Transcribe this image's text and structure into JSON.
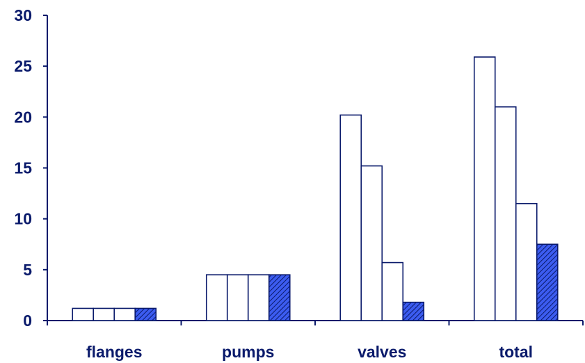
{
  "chart_data": {
    "type": "bar",
    "categories": [
      "flanges",
      "pumps",
      "valves",
      "total"
    ],
    "series": [
      {
        "values": [
          1.2,
          4.5,
          20.2,
          25.9
        ],
        "fill": "#ffffff"
      },
      {
        "values": [
          1.2,
          4.5,
          15.2,
          21.0
        ],
        "fill": "#ffffff"
      },
      {
        "values": [
          1.2,
          4.5,
          5.7,
          11.5
        ],
        "fill": "#ffffff"
      },
      {
        "values": [
          1.2,
          4.5,
          1.8,
          7.5
        ],
        "fill": "hatched-blue"
      }
    ],
    "ylim": [
      0,
      30
    ],
    "yticks": [
      "0",
      "5",
      "10",
      "15",
      "20",
      "25",
      "30"
    ],
    "grid": false,
    "legend": "none",
    "colors": {
      "axis": "#0a1a6b",
      "text": "#0a1a6b",
      "bar_outline": "#0a1a6b",
      "hatch_base": "#3c5cf0",
      "hatch_line": "#0a1a6b"
    }
  }
}
